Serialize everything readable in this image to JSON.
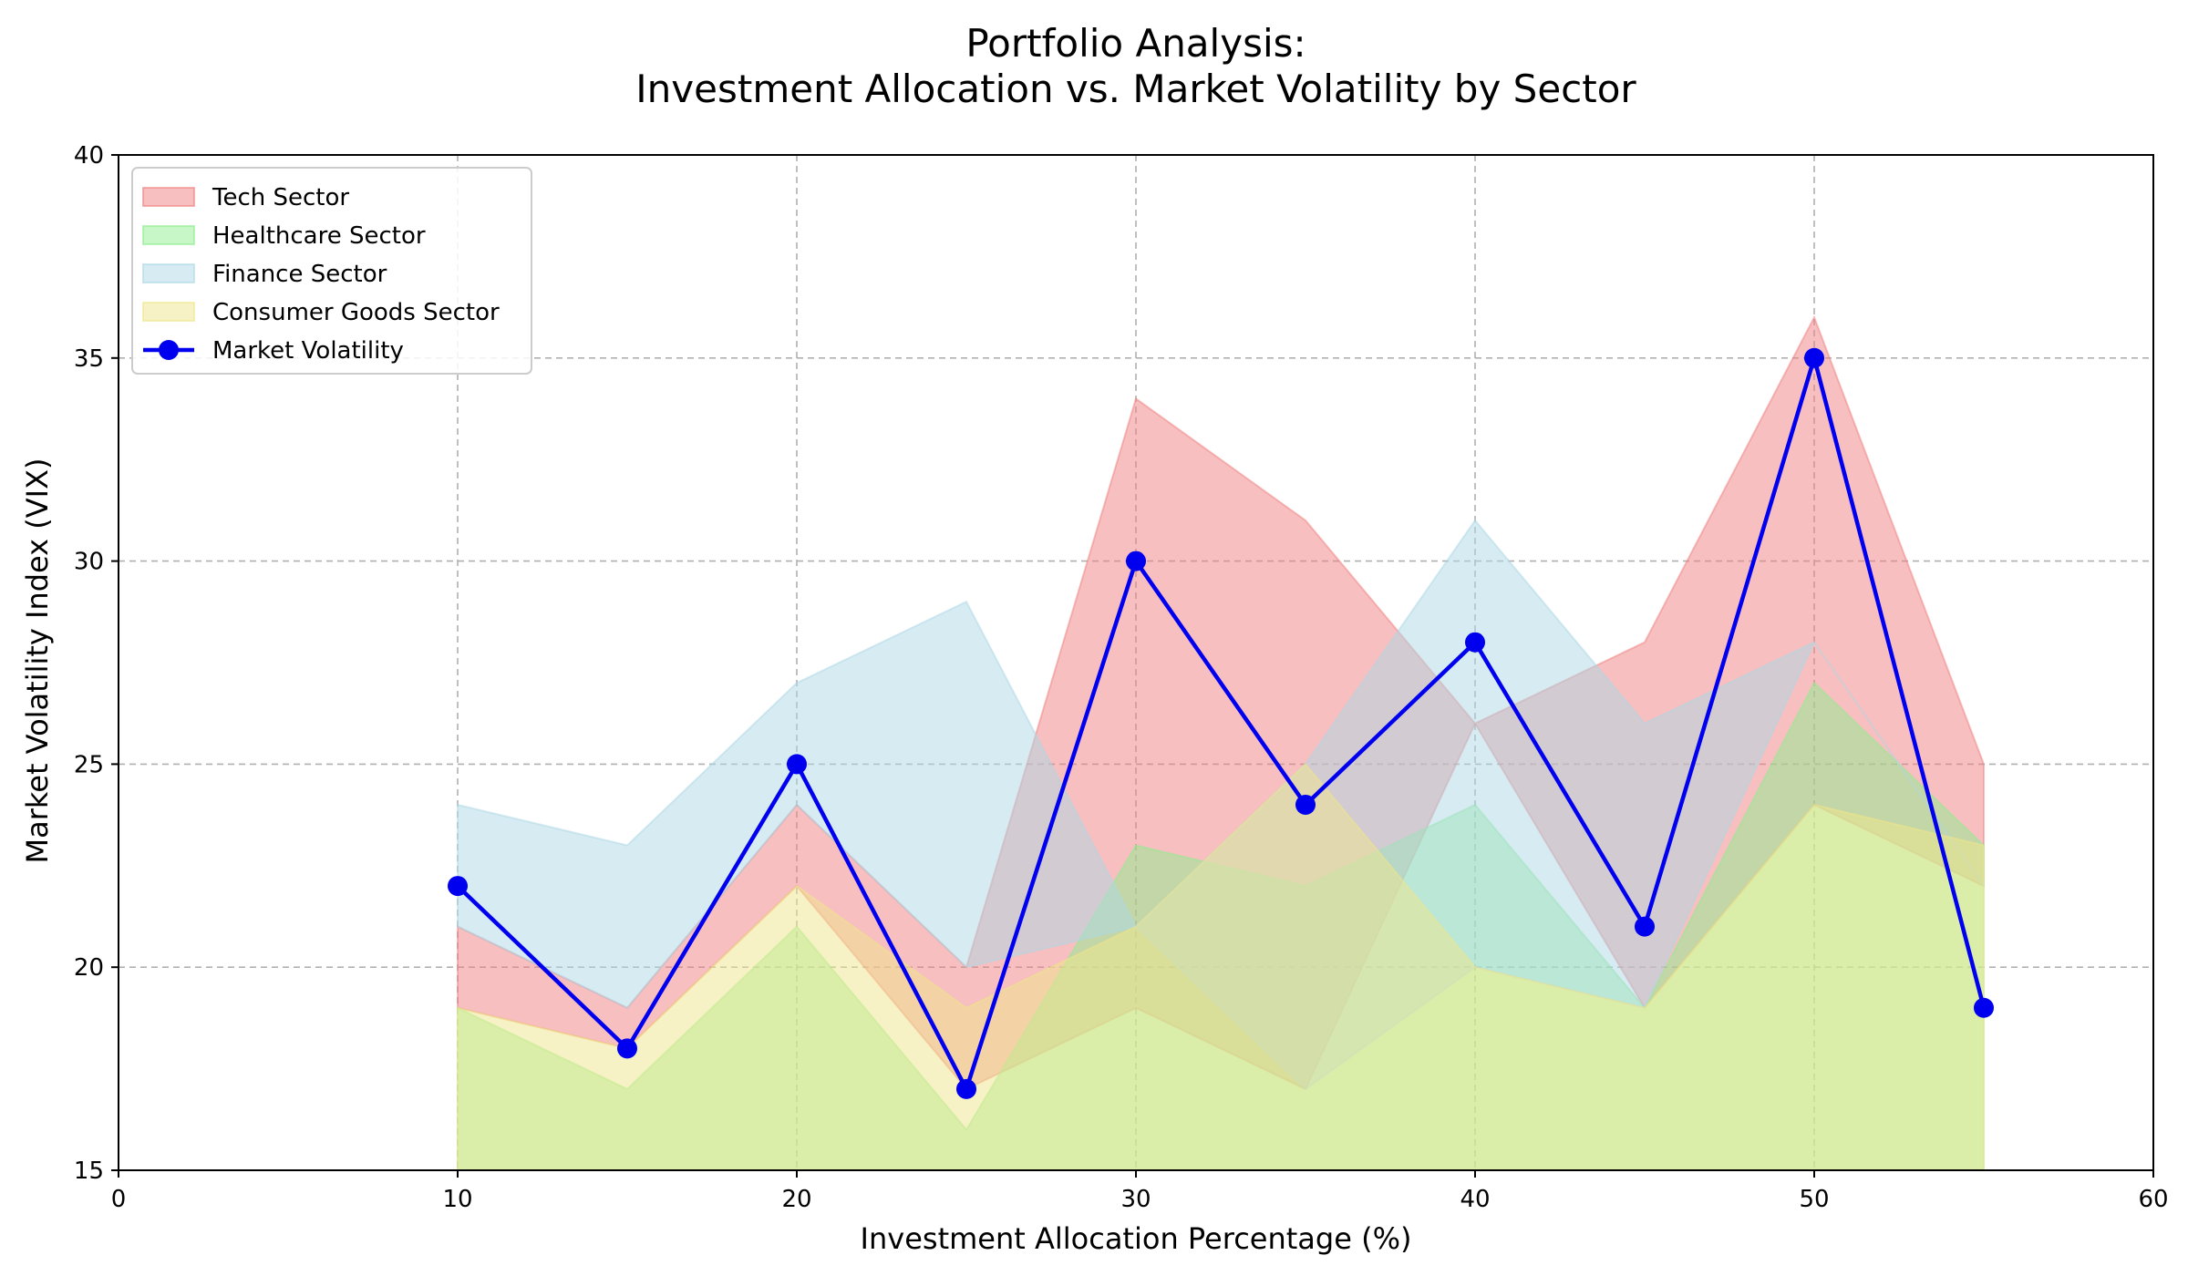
{
  "chart_data": {
    "type": "area",
    "title_lines": [
      "Portfolio Analysis:",
      "Investment Allocation vs. Market Volatility by Sector"
    ],
    "xlabel": "Investment Allocation Percentage (%)",
    "ylabel": "Market Volatility Index (VIX)",
    "xlim": [
      0,
      60
    ],
    "ylim": [
      15,
      40
    ],
    "xticks": [
      0,
      10,
      20,
      30,
      40,
      50,
      60
    ],
    "yticks": [
      15,
      20,
      25,
      30,
      35,
      40
    ],
    "grid": true,
    "legend_position": "top-left",
    "x": [
      10,
      15,
      20,
      25,
      30,
      35,
      40,
      45,
      50,
      55
    ],
    "areas": [
      {
        "name": "Tech Sector",
        "color": "#f08080",
        "lower": [
          19,
          18,
          22,
          17,
          19,
          17,
          26,
          19,
          24,
          22
        ],
        "upper": [
          21,
          19,
          24,
          20,
          34,
          31,
          26,
          28,
          36,
          25
        ]
      },
      {
        "name": "Healthcare Sector",
        "color": "#90ee90",
        "lower": [
          15,
          15,
          15,
          15,
          15,
          15,
          15,
          15,
          15,
          15
        ],
        "upper": [
          19,
          17,
          21,
          16,
          23,
          22,
          24,
          19,
          27,
          23
        ]
      },
      {
        "name": "Finance Sector",
        "color": "#add8e6",
        "lower": [
          21,
          19,
          24,
          20,
          21,
          17,
          20,
          19,
          28,
          22
        ],
        "upper": [
          24,
          23,
          27,
          29,
          21,
          25,
          31,
          26,
          28,
          22
        ]
      },
      {
        "name": "Consumer Goods Sector",
        "color": "#f0e68c",
        "lower": [
          15,
          15,
          15,
          15,
          15,
          15,
          15,
          15,
          15,
          15
        ],
        "upper": [
          19,
          18,
          22,
          19,
          21,
          25,
          20,
          19,
          24,
          23
        ]
      }
    ],
    "line": {
      "name": "Market Volatility",
      "color": "#0000ee",
      "values": [
        22,
        18,
        25,
        17,
        30,
        24,
        28,
        21,
        35,
        19
      ]
    }
  }
}
